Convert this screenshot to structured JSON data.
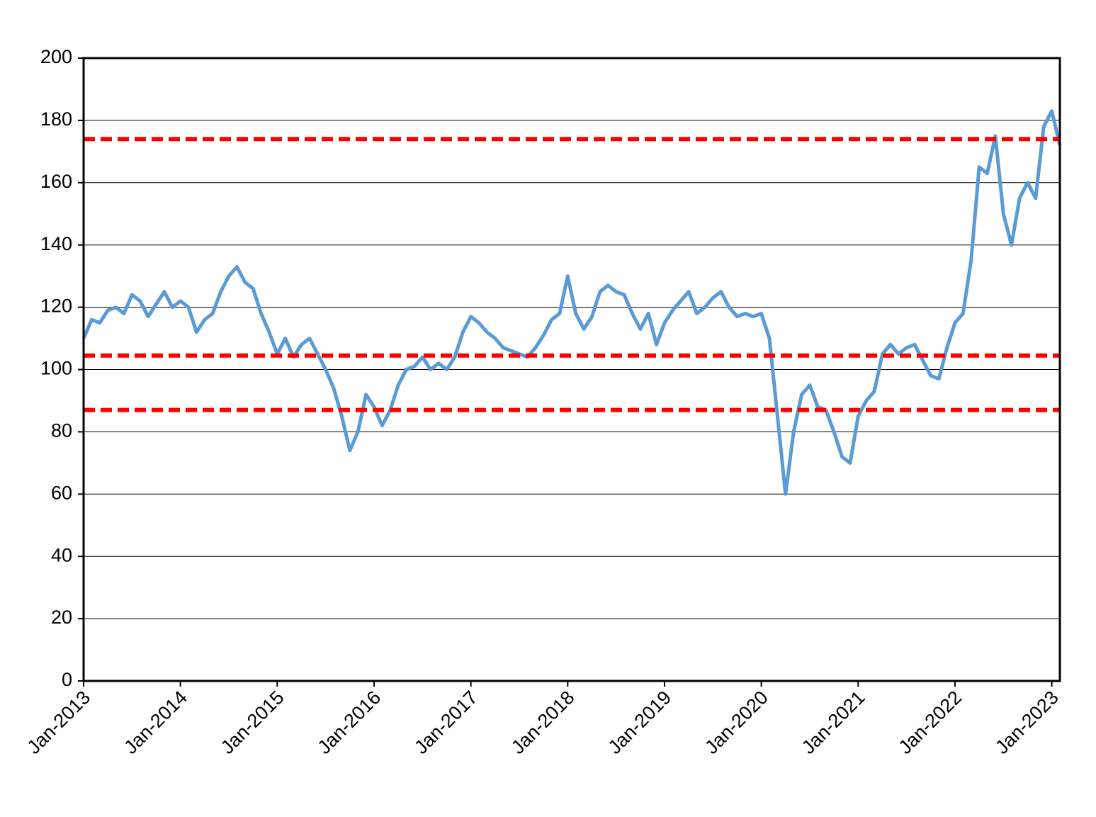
{
  "chart_data": {
    "type": "line",
    "x": [
      "2013-01",
      "2013-02",
      "2013-03",
      "2013-04",
      "2013-05",
      "2013-06",
      "2013-07",
      "2013-08",
      "2013-09",
      "2013-10",
      "2013-11",
      "2013-12",
      "2014-01",
      "2014-02",
      "2014-03",
      "2014-04",
      "2014-05",
      "2014-06",
      "2014-07",
      "2014-08",
      "2014-09",
      "2014-10",
      "2014-11",
      "2014-12",
      "2015-01",
      "2015-02",
      "2015-03",
      "2015-04",
      "2015-05",
      "2015-06",
      "2015-07",
      "2015-08",
      "2015-09",
      "2015-10",
      "2015-11",
      "2015-12",
      "2016-01",
      "2016-02",
      "2016-03",
      "2016-04",
      "2016-05",
      "2016-06",
      "2016-07",
      "2016-08",
      "2016-09",
      "2016-10",
      "2016-11",
      "2016-12",
      "2017-01",
      "2017-02",
      "2017-03",
      "2017-04",
      "2017-05",
      "2017-06",
      "2017-07",
      "2017-08",
      "2017-09",
      "2017-10",
      "2017-11",
      "2017-12",
      "2018-01",
      "2018-02",
      "2018-03",
      "2018-04",
      "2018-05",
      "2018-06",
      "2018-07",
      "2018-08",
      "2018-09",
      "2018-10",
      "2018-11",
      "2018-12",
      "2019-01",
      "2019-02",
      "2019-03",
      "2019-04",
      "2019-05",
      "2019-06",
      "2019-07",
      "2019-08",
      "2019-09",
      "2019-10",
      "2019-11",
      "2019-12",
      "2020-01",
      "2020-02",
      "2020-03",
      "2020-04",
      "2020-05",
      "2020-06",
      "2020-07",
      "2020-08",
      "2020-09",
      "2020-10",
      "2020-11",
      "2020-12",
      "2021-01",
      "2021-02",
      "2021-03",
      "2021-04",
      "2021-05",
      "2021-06",
      "2021-07",
      "2021-08",
      "2021-09",
      "2021-10",
      "2021-11",
      "2021-12",
      "2022-01",
      "2022-02",
      "2022-03",
      "2022-04",
      "2022-05",
      "2022-06",
      "2022-07",
      "2022-08",
      "2022-09",
      "2022-10",
      "2022-11",
      "2022-12",
      "2023-01",
      "2023-02"
    ],
    "series": [
      {
        "color": "#5b9bd5",
        "values": [
          110,
          116,
          115,
          119,
          120,
          118,
          124,
          122,
          117,
          121,
          125,
          120,
          122,
          120,
          112,
          116,
          118,
          125,
          130,
          133,
          128,
          126,
          118,
          112,
          105,
          110,
          104,
          108,
          110,
          105,
          100,
          94,
          85,
          74,
          80,
          92,
          88,
          82,
          87,
          95,
          100,
          101,
          104,
          100,
          102,
          100,
          104,
          112,
          117,
          115,
          112,
          110,
          107,
          106,
          105,
          104,
          107,
          111,
          116,
          118,
          130,
          118,
          113,
          117,
          125,
          127,
          125,
          124,
          118,
          113,
          118,
          108,
          115,
          119,
          122,
          125,
          118,
          120,
          123,
          125,
          120,
          117,
          118,
          117,
          118,
          110,
          85,
          60,
          80,
          92,
          95,
          88,
          87,
          80,
          72,
          70,
          85,
          90,
          93,
          105,
          108,
          105,
          107,
          108,
          103,
          98,
          97,
          107,
          115,
          118,
          135,
          165,
          163,
          175,
          150,
          140,
          155,
          160,
          155,
          178,
          183,
          172
        ]
      }
    ],
    "hlines": [
      174,
      104.5,
      87
    ],
    "hline_color": "#ff0000",
    "xlim": [
      "2013-01",
      "2023-02"
    ],
    "xticks": [
      {
        "value": "2013-01",
        "label": "Jan-2013"
      },
      {
        "value": "2014-01",
        "label": "Jan-2014"
      },
      {
        "value": "2015-01",
        "label": "Jan-2015"
      },
      {
        "value": "2016-01",
        "label": "Jan-2016"
      },
      {
        "value": "2017-01",
        "label": "Jan-2017"
      },
      {
        "value": "2018-01",
        "label": "Jan-2018"
      },
      {
        "value": "2019-01",
        "label": "Jan-2019"
      },
      {
        "value": "2020-01",
        "label": "Jan-2020"
      },
      {
        "value": "2021-01",
        "label": "Jan-2021"
      },
      {
        "value": "2022-01",
        "label": "Jan-2022"
      },
      {
        "value": "2023-01",
        "label": "Jan-2023"
      }
    ],
    "ylim": [
      0,
      200
    ],
    "yticks": [
      0,
      20,
      40,
      60,
      80,
      100,
      120,
      140,
      160,
      180,
      200
    ],
    "grid": true
  }
}
